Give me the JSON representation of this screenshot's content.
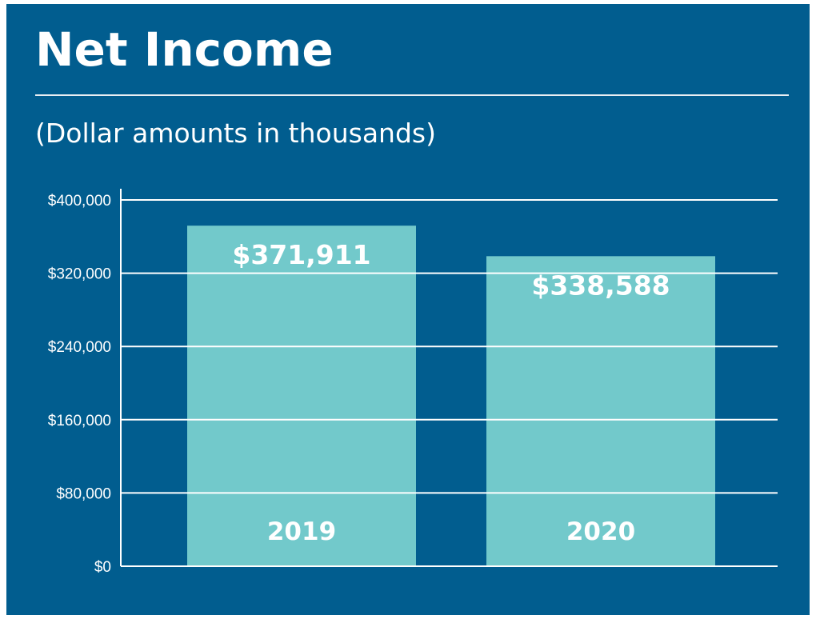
{
  "chart_data": {
    "type": "bar",
    "title": "Net Income",
    "subtitle": "(Dollar amounts in thousands)",
    "categories": [
      "2019",
      "2020"
    ],
    "values": [
      371911,
      338588
    ],
    "value_labels": [
      "$371,911",
      "$338,588"
    ],
    "xlabel": "",
    "ylabel": "",
    "ylim": [
      0,
      400000
    ],
    "yticks": [
      0,
      80000,
      160000,
      240000,
      320000,
      400000
    ],
    "ytick_labels": [
      "$0",
      "$80,000",
      "$160,000",
      "$240,000",
      "$320,000",
      "$400,000"
    ],
    "grid": true,
    "legend": "none"
  },
  "colors": {
    "background": "#015d8f",
    "bar": "#72c9cb",
    "text": "#ffffff",
    "grid": "#ffffff"
  }
}
